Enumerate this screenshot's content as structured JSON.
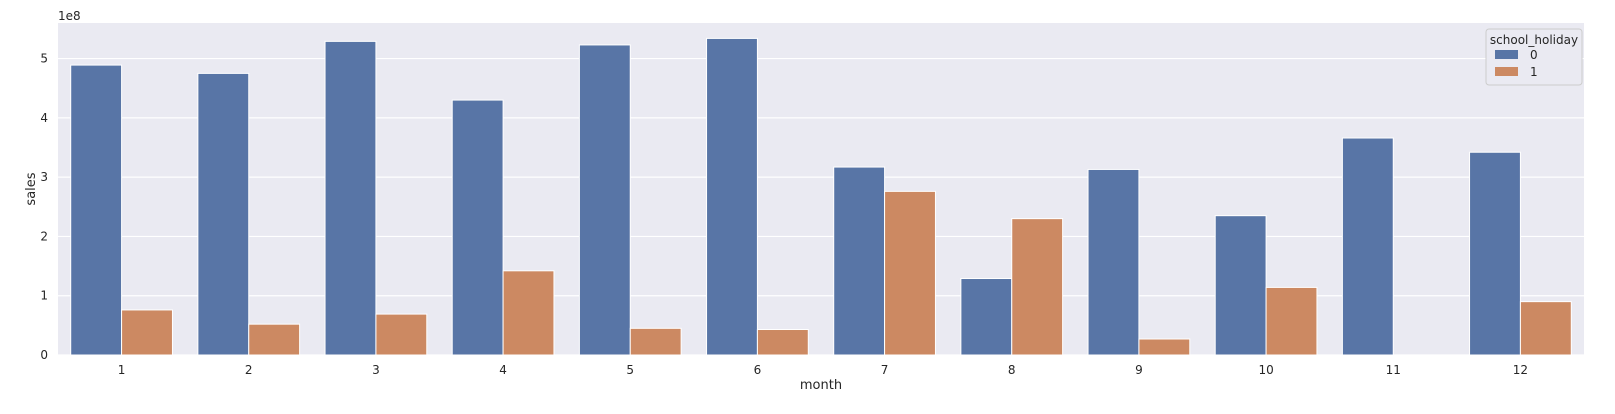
{
  "chart_data": {
    "type": "bar",
    "xlabel": "month",
    "ylabel": "sales",
    "y_offset_label": "1e8",
    "ylim": [
      0,
      5.6
    ],
    "y_ticks": [
      "0",
      "1",
      "2",
      "3",
      "4",
      "5"
    ],
    "categories": [
      "1",
      "2",
      "3",
      "4",
      "5",
      "6",
      "7",
      "8",
      "9",
      "10",
      "11",
      "12"
    ],
    "grid": true,
    "legend": {
      "title": "school_holiday",
      "placement": "top-right"
    },
    "series": [
      {
        "name": "0",
        "color": "#5875a6",
        "values": [
          4.89,
          4.75,
          5.29,
          4.3,
          5.23,
          5.34,
          3.17,
          1.29,
          3.13,
          2.35,
          3.66,
          3.42
        ]
      },
      {
        "name": "1",
        "color": "#cc8962",
        "values": [
          0.76,
          0.52,
          0.69,
          1.42,
          0.45,
          0.43,
          2.76,
          2.3,
          0.27,
          1.14,
          0.0,
          0.9
        ]
      }
    ]
  }
}
